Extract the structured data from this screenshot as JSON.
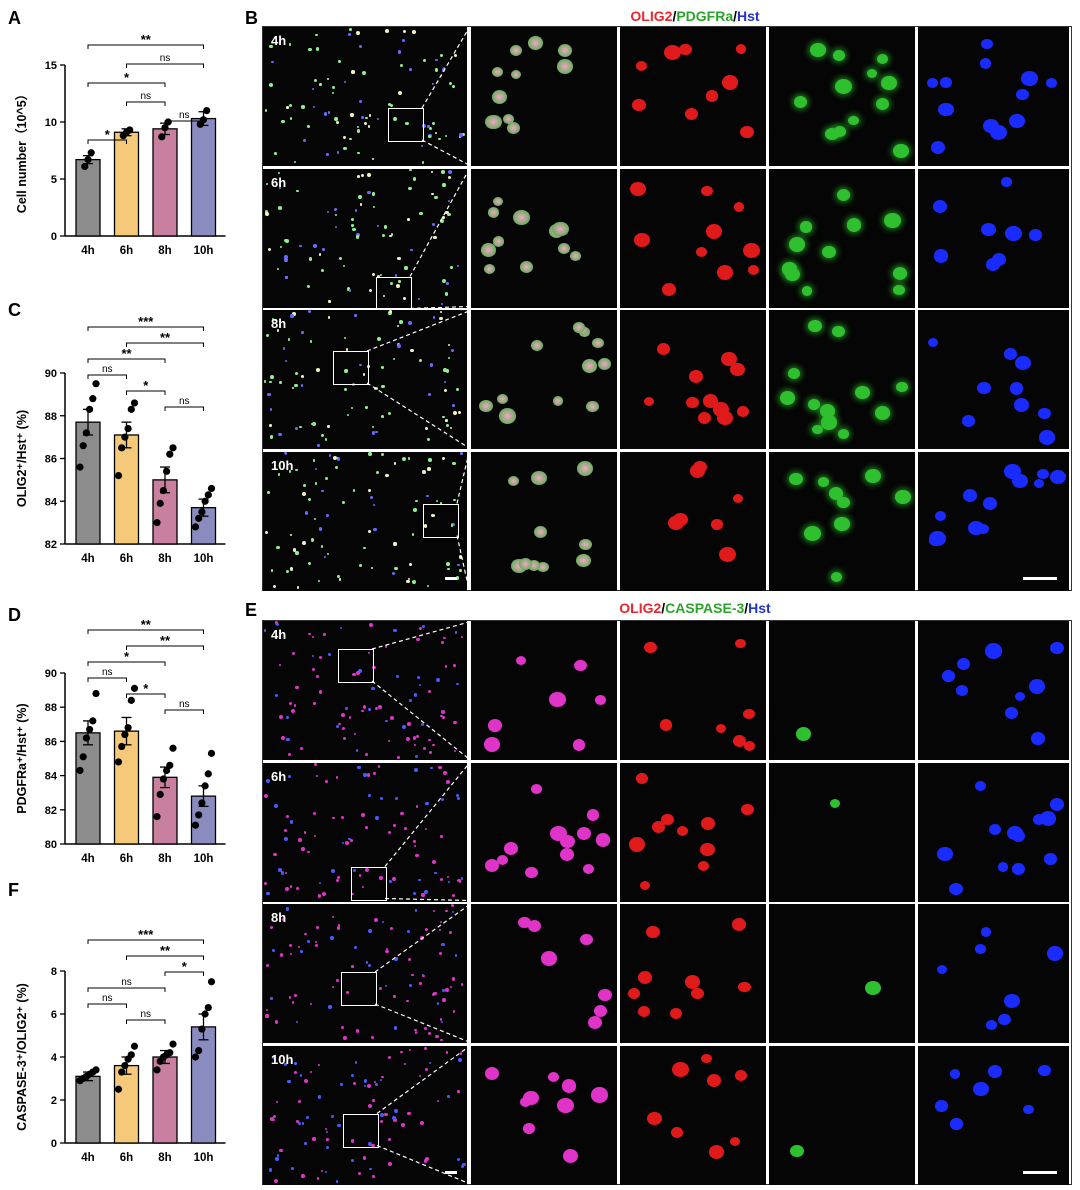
{
  "panels": {
    "A": "A",
    "B": "B",
    "C": "C",
    "D": "D",
    "E": "E",
    "F": "F"
  },
  "stain_titles": {
    "B": [
      {
        "text": "OLIG2",
        "color": "#e8262d"
      },
      {
        "text": "/",
        "color": "#000000"
      },
      {
        "text": "PDGFRa",
        "color": "#2aa52a"
      },
      {
        "text": "/",
        "color": "#000000"
      },
      {
        "text": "Hst",
        "color": "#2233cc"
      }
    ],
    "E": [
      {
        "text": "OLIG2",
        "color": "#e8262d"
      },
      {
        "text": "/",
        "color": "#000000"
      },
      {
        "text": "CASPASE-3",
        "color": "#2aa52a"
      },
      {
        "text": "/",
        "color": "#000000"
      },
      {
        "text": "Hst",
        "color": "#2233cc"
      }
    ]
  },
  "time_labels": [
    "4h",
    "6h",
    "8h",
    "10h"
  ],
  "colors": {
    "bar_4h": "#8c8c8c",
    "bar_6h": "#f5c97a",
    "bar_8h": "#c87fa0",
    "bar_10h": "#8a8cbf",
    "olig2": "#e01a1a",
    "pdgfra": "#2fc02f",
    "hst": "#1a2bff",
    "merge_magenta": "#e033c8"
  },
  "chart_data": [
    {
      "id": "A",
      "type": "bar",
      "categories": [
        "4h",
        "6h",
        "8h",
        "10h"
      ],
      "values": [
        6.7,
        9.1,
        9.4,
        10.3
      ],
      "errors": [
        0.35,
        0.3,
        0.5,
        0.6
      ],
      "points": [
        [
          6.1,
          6.7,
          7.3
        ],
        [
          8.8,
          9.1,
          9.3
        ],
        [
          8.7,
          9.5,
          10.0
        ],
        [
          9.8,
          10.2,
          11.0
        ]
      ],
      "ylabel": "Cell number（10^5）",
      "yticks": [
        "0",
        "5",
        "10",
        "15"
      ],
      "ylim": [
        0,
        15
      ],
      "sig": [
        {
          "pair": [
            0,
            3
          ],
          "label": "**"
        },
        {
          "pair": [
            1,
            3
          ],
          "label": "ns"
        },
        {
          "pair": [
            0,
            2
          ],
          "label": "*"
        },
        {
          "pair": [
            1,
            2
          ],
          "label": "ns"
        },
        {
          "pair": [
            2,
            3
          ],
          "label": "ns"
        },
        {
          "pair": [
            0,
            1
          ],
          "label": "*"
        }
      ]
    },
    {
      "id": "C",
      "type": "bar",
      "categories": [
        "4h",
        "6h",
        "8h",
        "10h"
      ],
      "values": [
        87.7,
        87.1,
        85.0,
        83.7
      ],
      "errors": [
        0.6,
        0.6,
        0.6,
        0.4
      ],
      "points": [
        [
          85.6,
          86.6,
          87.2,
          88.3,
          88.8,
          89.5
        ],
        [
          85.2,
          86.5,
          87.0,
          87.4,
          88.3,
          88.6
        ],
        [
          83.0,
          83.9,
          84.5,
          85.4,
          86.2,
          86.5
        ],
        [
          82.8,
          83.2,
          83.5,
          84.0,
          84.3,
          84.6
        ]
      ],
      "ylabel": "OLIG2⁺/Hst⁺ (%)",
      "yticks": [
        "82",
        "84",
        "86",
        "88",
        "90"
      ],
      "ylim": [
        82,
        90
      ],
      "sig": [
        {
          "pair": [
            0,
            3
          ],
          "label": "***"
        },
        {
          "pair": [
            1,
            3
          ],
          "label": "**"
        },
        {
          "pair": [
            0,
            2
          ],
          "label": "**"
        },
        {
          "pair": [
            0,
            1
          ],
          "label": "ns"
        },
        {
          "pair": [
            1,
            2
          ],
          "label": "*"
        },
        {
          "pair": [
            2,
            3
          ],
          "label": "ns"
        }
      ]
    },
    {
      "id": "D",
      "type": "bar",
      "categories": [
        "4h",
        "6h",
        "8h",
        "10h"
      ],
      "values": [
        86.5,
        86.6,
        83.9,
        82.8
      ],
      "errors": [
        0.7,
        0.8,
        0.6,
        0.6
      ],
      "points": [
        [
          84.3,
          85.1,
          86.2,
          86.7,
          87.2,
          88.8
        ],
        [
          84.8,
          85.7,
          86.4,
          86.8,
          88.4,
          89.1
        ],
        [
          81.6,
          82.9,
          83.8,
          84.3,
          84.6,
          85.6
        ],
        [
          81.1,
          81.7,
          82.4,
          83.4,
          84.1,
          85.3
        ]
      ],
      "ylabel": "PDGFRa⁺/Hst⁺ (%)",
      "yticks": [
        "80",
        "82",
        "84",
        "86",
        "88",
        "90"
      ],
      "ylim": [
        80,
        90
      ],
      "sig": [
        {
          "pair": [
            0,
            3
          ],
          "label": "**"
        },
        {
          "pair": [
            1,
            3
          ],
          "label": "**"
        },
        {
          "pair": [
            0,
            2
          ],
          "label": "*"
        },
        {
          "pair": [
            0,
            1
          ],
          "label": "ns"
        },
        {
          "pair": [
            1,
            2
          ],
          "label": "*"
        },
        {
          "pair": [
            2,
            3
          ],
          "label": "ns"
        }
      ]
    },
    {
      "id": "F",
      "type": "bar",
      "categories": [
        "4h",
        "6h",
        "8h",
        "10h"
      ],
      "values": [
        3.1,
        3.6,
        4.0,
        5.4
      ],
      "errors": [
        0.2,
        0.4,
        0.3,
        0.6
      ],
      "points": [
        [
          2.9,
          3.0,
          3.1,
          3.2,
          3.3,
          3.4
        ],
        [
          2.5,
          3.3,
          3.6,
          3.9,
          4.1,
          4.5
        ],
        [
          3.4,
          3.8,
          4.0,
          4.1,
          4.2,
          4.6
        ],
        [
          4.0,
          4.3,
          5.3,
          6.0,
          6.3,
          7.5
        ]
      ],
      "ylabel": "CASPASE-3⁺/OLIG2⁺ (%)",
      "yticks": [
        "0",
        "2",
        "4",
        "6",
        "8"
      ],
      "ylim": [
        0,
        8
      ],
      "sig": [
        {
          "pair": [
            0,
            3
          ],
          "label": "***"
        },
        {
          "pair": [
            1,
            3
          ],
          "label": "**"
        },
        {
          "pair": [
            2,
            3
          ],
          "label": "*"
        },
        {
          "pair": [
            0,
            2
          ],
          "label": "ns"
        },
        {
          "pair": [
            0,
            1
          ],
          "label": "ns"
        },
        {
          "pair": [
            1,
            2
          ],
          "label": "ns"
        }
      ]
    }
  ]
}
